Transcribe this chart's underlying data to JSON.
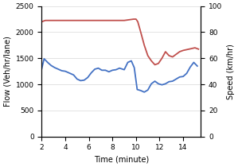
{
  "xlabel": "Time (minute)",
  "ylabel_left": "Flow (Veh/hr/lane)",
  "ylabel_right": "Speed (km/hr)",
  "xlim": [
    2,
    15.5
  ],
  "ylim_left": [
    0,
    2500
  ],
  "ylim_right": [
    0,
    100
  ],
  "xticks": [
    2,
    4,
    6,
    8,
    10,
    12,
    14
  ],
  "yticks_left": [
    0,
    500,
    1000,
    1500,
    2000,
    2500
  ],
  "yticks_right": [
    0,
    20,
    40,
    60,
    80,
    100
  ],
  "flow_color": "#4472C4",
  "speed_color": "#C0504D",
  "flow_time": [
    2.0,
    2.2,
    2.5,
    2.8,
    3.1,
    3.4,
    3.7,
    4.0,
    4.4,
    4.7,
    5.0,
    5.3,
    5.6,
    5.9,
    6.2,
    6.5,
    6.8,
    7.1,
    7.4,
    7.7,
    8.0,
    8.3,
    8.6,
    9.0,
    9.3,
    9.6,
    9.85,
    10.1,
    10.4,
    10.7,
    11.0,
    11.3,
    11.6,
    11.9,
    12.2,
    12.5,
    12.8,
    13.1,
    13.4,
    13.7,
    14.0,
    14.3,
    14.6,
    14.9,
    15.2
  ],
  "flow_values": [
    1300,
    1490,
    1420,
    1360,
    1320,
    1290,
    1260,
    1250,
    1210,
    1180,
    1100,
    1070,
    1080,
    1130,
    1220,
    1290,
    1310,
    1270,
    1270,
    1240,
    1270,
    1280,
    1310,
    1280,
    1420,
    1450,
    1320,
    900,
    880,
    850,
    890,
    1010,
    1060,
    1010,
    990,
    1010,
    1050,
    1060,
    1100,
    1140,
    1150,
    1210,
    1330,
    1420,
    1350
  ],
  "speed_time": [
    2.0,
    2.3,
    3.0,
    4.0,
    5.0,
    6.0,
    7.0,
    8.0,
    9.0,
    9.8,
    10.0,
    10.15,
    10.4,
    10.7,
    11.0,
    11.3,
    11.6,
    11.9,
    12.2,
    12.5,
    12.8,
    13.1,
    13.4,
    13.7,
    14.0,
    14.5,
    15.0,
    15.3
  ],
  "speed_values": [
    88,
    89,
    89,
    89,
    89,
    89,
    89,
    89,
    89,
    90,
    90,
    88,
    80,
    70,
    62,
    58,
    55,
    56,
    60,
    65,
    62,
    61,
    63,
    65,
    66,
    67,
    68,
    67
  ],
  "linewidth": 1.3,
  "tick_labelsize": 6.5,
  "axis_labelsize": 7.0,
  "grid_color": "#d8d8d8",
  "grid_linewidth": 0.5
}
